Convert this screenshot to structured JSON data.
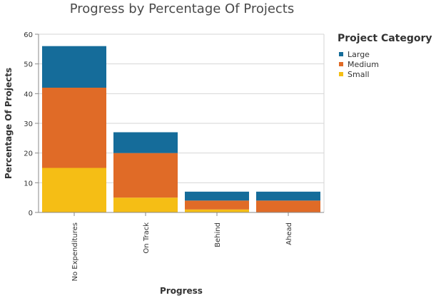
{
  "chart_data": {
    "type": "bar",
    "stacked": true,
    "title": "Progress by Percentage Of Projects",
    "xlabel": "Progress",
    "ylabel": "Percentage Of Projects",
    "categories": [
      "No Expenditures",
      "On Track",
      "Behind",
      "Ahead"
    ],
    "series": [
      {
        "name": "Small",
        "values": [
          15,
          5,
          1,
          0
        ],
        "color": "#f5be15"
      },
      {
        "name": "Medium",
        "values": [
          27,
          15,
          3,
          4
        ],
        "color": "#e06b27"
      },
      {
        "name": "Large",
        "values": [
          14,
          7,
          3,
          3
        ],
        "color": "#156c9a"
      }
    ],
    "ylim": [
      0,
      60
    ],
    "yticks": [
      0,
      10,
      20,
      30,
      40,
      50,
      60
    ],
    "grid": true,
    "legend": {
      "title": "Project Category",
      "position": "right",
      "items": [
        {
          "label": "Large",
          "color": "#156c9a"
        },
        {
          "label": "Medium",
          "color": "#e06b27"
        },
        {
          "label": "Small",
          "color": "#f5be15"
        }
      ]
    }
  }
}
